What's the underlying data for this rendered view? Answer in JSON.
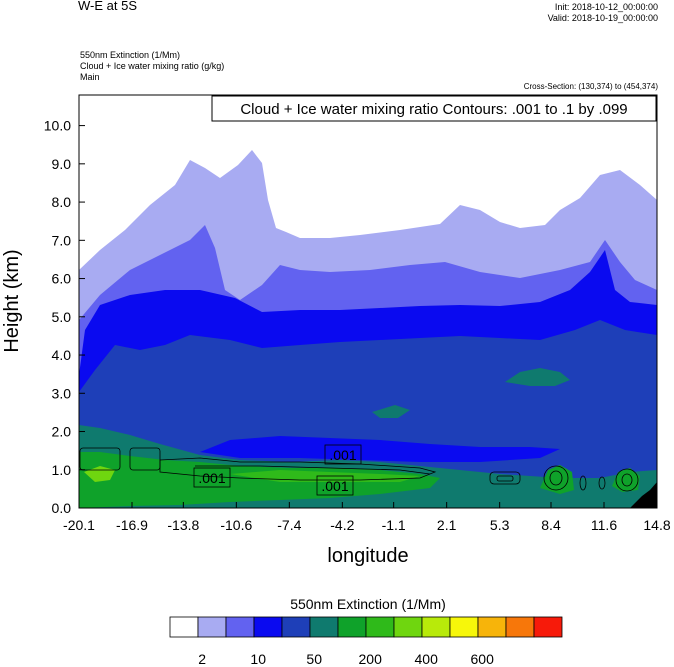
{
  "header": {
    "title": "W-E at 5S",
    "init": "Init: 2018-10-12_00:00:00",
    "valid": "Valid: 2018-10-19_00:00:00",
    "subtitle_lines": [
      "550nm Extinction   (1/Mm)",
      "Cloud + Ice water mixing ratio   (g/kg)",
      "Main"
    ],
    "cross_section": "Cross-Section: (130,374) to (454,374)"
  },
  "chart_data": {
    "type": "heatmap",
    "title": "W-E at 5S",
    "contour_title": "Cloud + Ice water mixing ratio Contours: .001 to .1 by .099",
    "contour_labels": [
      ".001",
      ".001",
      ".001"
    ],
    "xlabel": "longitude",
    "ylabel": "Height (km)",
    "x_ticks": [
      "-20.1",
      "-16.9",
      "-13.8",
      "-10.6",
      "-7.4",
      "-4.2",
      "-1.1",
      "2.1",
      "5.3",
      "8.4",
      "11.6",
      "14.8"
    ],
    "y_ticks": [
      "0.0",
      "1.0",
      "2.0",
      "3.0",
      "4.0",
      "5.0",
      "6.0",
      "7.0",
      "8.0",
      "9.0",
      "10.0"
    ],
    "xlim": [
      -20.1,
      14.8
    ],
    "ylim": [
      0.0,
      10.8
    ],
    "colorbar": {
      "label": "550nm Extinction  (1/Mm)",
      "colors": [
        "#ffffff",
        "#a8abf2",
        "#6262f0",
        "#0a0af0",
        "#1e3fb8",
        "#0f7a6e",
        "#0fa22a",
        "#2fba1a",
        "#6fd60f",
        "#b8ea0a",
        "#f7f70a",
        "#f7b40a",
        "#f7770a",
        "#f71a0a",
        "#000000"
      ],
      "tick_labels": [
        "2",
        "10",
        "50",
        "200",
        "400",
        "600"
      ]
    }
  }
}
